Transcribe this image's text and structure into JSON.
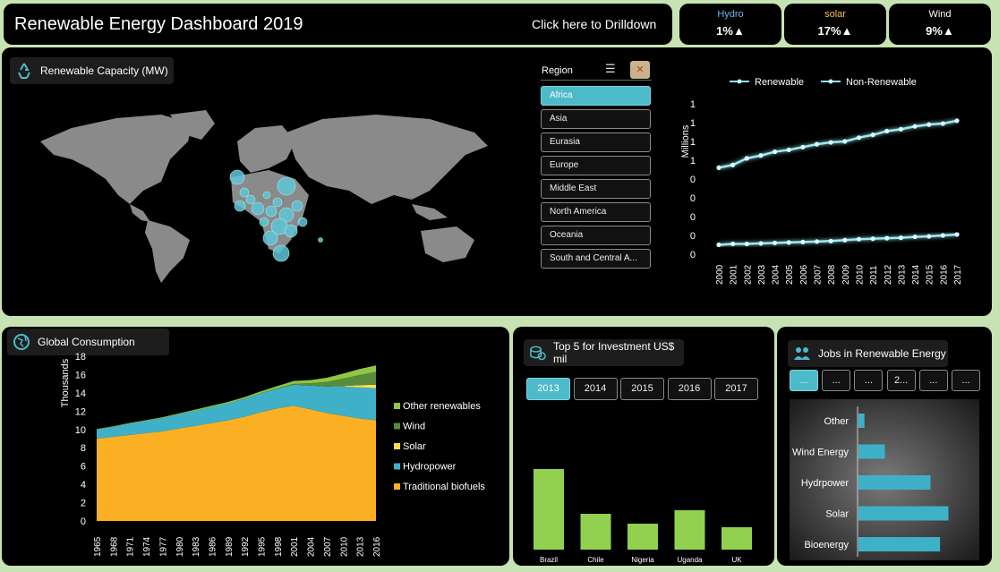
{
  "header": {
    "title": "Renewable Energy Dashboard 2019",
    "drilldown_label": "Click here to Drilldown"
  },
  "kpis": [
    {
      "label": "Hydro",
      "value": "1%▲",
      "color": "#6fb3e8"
    },
    {
      "label": "solar",
      "value": "17%▲",
      "color": "#f2c14e"
    },
    {
      "label": "Wind",
      "value": "9%▲",
      "color": "#ffffff"
    }
  ],
  "capacity": {
    "title": "Renewable Capacity (MW)"
  },
  "region_slicer": {
    "title": "Region",
    "items": [
      "Africa",
      "Asia",
      "Eurasia",
      "Europe",
      "Middle East",
      "North America",
      "Oceania",
      "South and Central A..."
    ],
    "selected": 0
  },
  "colors": {
    "accent": "#4dbac9",
    "biofuel": "#fbb023",
    "hydro": "#3eb1c8",
    "solar": "#f5e14a",
    "wind": "#5a8a3c",
    "other": "#8fc743",
    "bar": "#92d050"
  },
  "chart_data": [
    {
      "type": "line",
      "legend": [
        "Renewable",
        "Non-Renewable"
      ],
      "ylabel": "Millions",
      "ytick_labels": [
        "1",
        "1",
        "1",
        "1",
        "0",
        "0",
        "0",
        "0",
        "0"
      ],
      "ylim": [
        0,
        1.6
      ],
      "x": [
        "2000",
        "2001",
        "2002",
        "2003",
        "2004",
        "2005",
        "2006",
        "2007",
        "2008",
        "2009",
        "2010",
        "2011",
        "2012",
        "2013",
        "2014",
        "2015",
        "2016",
        "2017"
      ],
      "series": [
        {
          "name": "Renewable",
          "values": [
            0.92,
            0.95,
            1.02,
            1.05,
            1.09,
            1.11,
            1.14,
            1.17,
            1.19,
            1.2,
            1.24,
            1.27,
            1.31,
            1.33,
            1.36,
            1.38,
            1.39,
            1.42
          ]
        },
        {
          "name": "Non-Renewable",
          "values": [
            0.1,
            0.11,
            0.11,
            0.115,
            0.12,
            0.125,
            0.13,
            0.135,
            0.14,
            0.15,
            0.16,
            0.165,
            0.17,
            0.175,
            0.185,
            0.19,
            0.2,
            0.21
          ]
        }
      ]
    },
    {
      "type": "area",
      "title": "Global Consumption",
      "ylabel": "Thousands",
      "ylim": [
        0,
        18
      ],
      "yticks": [
        0,
        2,
        4,
        6,
        8,
        10,
        12,
        14,
        16,
        18
      ],
      "tick_labels": [
        "1965",
        "1968",
        "1971",
        "1974",
        "1977",
        "1980",
        "1983",
        "1986",
        "1989",
        "1992",
        "1995",
        "1998",
        "2001",
        "2004",
        "2007",
        "2010",
        "2013",
        "2016"
      ],
      "series": [
        {
          "name": "Traditional biofuels",
          "values": [
            9.0,
            9.2,
            9.4,
            9.6,
            9.8,
            10.1,
            10.4,
            10.7,
            11.0,
            11.4,
            11.9,
            12.3,
            12.6,
            12.2,
            11.8,
            11.5,
            11.2,
            11.0
          ]
        },
        {
          "name": "Hydropower",
          "values": [
            1.0,
            1.1,
            1.25,
            1.35,
            1.45,
            1.55,
            1.65,
            1.75,
            1.85,
            1.95,
            2.05,
            2.15,
            2.3,
            2.6,
            2.9,
            3.2,
            3.4,
            3.5
          ]
        },
        {
          "name": "Solar",
          "values": [
            0,
            0,
            0,
            0,
            0,
            0,
            0,
            0,
            0,
            0,
            0,
            0,
            0,
            0,
            0,
            0.05,
            0.25,
            0.4
          ]
        },
        {
          "name": "Wind",
          "values": [
            0,
            0,
            0,
            0,
            0,
            0,
            0,
            0,
            0,
            0.01,
            0.02,
            0.05,
            0.1,
            0.25,
            0.5,
            0.8,
            1.1,
            1.4
          ]
        },
        {
          "name": "Other renewables",
          "values": [
            0.05,
            0.05,
            0.06,
            0.07,
            0.08,
            0.1,
            0.12,
            0.14,
            0.16,
            0.18,
            0.2,
            0.25,
            0.3,
            0.35,
            0.45,
            0.55,
            0.65,
            0.7
          ]
        }
      ]
    },
    {
      "type": "bar",
      "title": "Top 5 for Investment US$ mil",
      "years": [
        "2013",
        "2014",
        "2015",
        "2016",
        "2017"
      ],
      "selected_year": 0,
      "categories": [
        "Brazil",
        "Chile",
        "Nigeria",
        "Uganda",
        "UK"
      ],
      "values": [
        90,
        40,
        29,
        44,
        25
      ],
      "ylim": [
        0,
        100
      ]
    },
    {
      "type": "bar",
      "orientation": "horizontal",
      "title": "Jobs in Renewable Energy",
      "filter_buttons": [
        "...",
        "...",
        "...",
        "2...",
        "...",
        "..."
      ],
      "selected_filter": 0,
      "categories": [
        "Other",
        "Wind Energy",
        "Hydrpower",
        "Solar",
        "Bioenergy"
      ],
      "values": [
        0.5,
        2.2,
        6.0,
        7.5,
        6.8
      ],
      "xlim": [
        0,
        10
      ]
    }
  ]
}
